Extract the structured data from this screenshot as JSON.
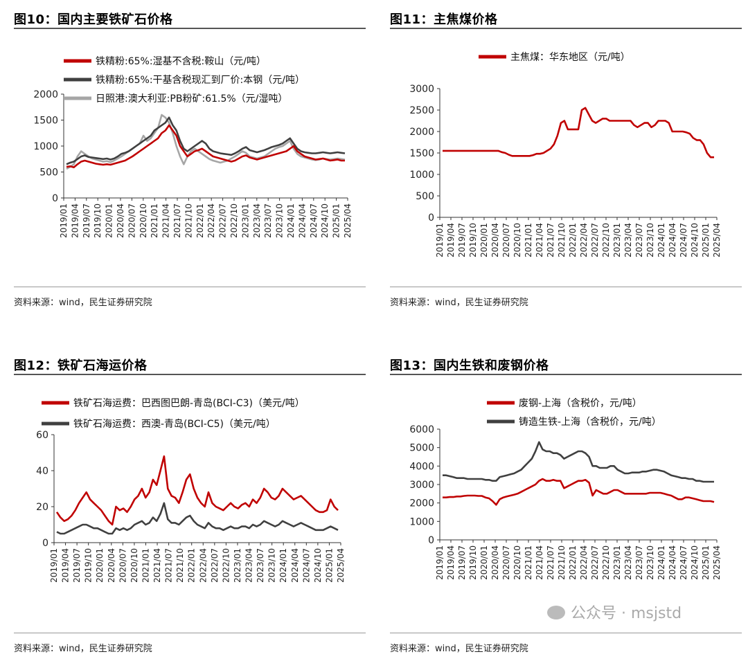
{
  "source_text": "资料来源：wind，民生证券研究院",
  "watermark": "公众号 · msjstd",
  "colors": {
    "red": "#c00000",
    "dark": "#404040",
    "gray": "#a6a6a6"
  },
  "xticks": [
    "2019/01",
    "2019/04",
    "2019/07",
    "2019/10",
    "2020/01",
    "2020/04",
    "2020/07",
    "2020/10",
    "2021/01",
    "2021/04",
    "2021/07",
    "2021/10",
    "2022/01",
    "2022/04",
    "2022/07",
    "2022/10",
    "2023/01",
    "2023/04",
    "2023/07",
    "2023/10",
    "2024/01",
    "2024/04",
    "2024/07",
    "2024/10",
    "2025/01",
    "2025/04"
  ],
  "chart_data": [
    {
      "title": "图10：国内主要铁矿石价格",
      "type": "line",
      "ylim": [
        0,
        2000
      ],
      "yticks": [
        0,
        500,
        1000,
        1500,
        2000
      ],
      "legend": "top-left",
      "series": [
        {
          "name": "铁精粉:65%:湿基不含税:鞍山（元/吨）",
          "color": "#c00000",
          "values": [
            600,
            610,
            590,
            650,
            700,
            720,
            700,
            680,
            660,
            650,
            640,
            650,
            640,
            660,
            680,
            700,
            720,
            760,
            800,
            850,
            900,
            950,
            1000,
            1050,
            1100,
            1150,
            1250,
            1300,
            1400,
            1300,
            1200,
            1000,
            900,
            800,
            850,
            900,
            920,
            950,
            900,
            850,
            800,
            780,
            760,
            740,
            720,
            700,
            720,
            760,
            800,
            820,
            780,
            760,
            740,
            760,
            780,
            800,
            820,
            840,
            860,
            880,
            900,
            950,
            1000,
            900,
            850,
            800,
            780,
            760,
            740,
            750,
            760,
            740,
            720,
            730,
            740,
            720,
            720
          ]
        },
        {
          "name": "铁精粉:65%:干基含税现汇到厂价:本钢（元/吨）",
          "color": "#404040",
          "values": [
            650,
            680,
            700,
            750,
            800,
            820,
            790,
            780,
            770,
            760,
            750,
            760,
            740,
            760,
            800,
            850,
            870,
            900,
            950,
            1000,
            1050,
            1100,
            1150,
            1200,
            1300,
            1350,
            1400,
            1450,
            1550,
            1400,
            1300,
            1100,
            950,
            900,
            950,
            1000,
            1050,
            1100,
            1050,
            950,
            900,
            880,
            860,
            850,
            840,
            830,
            860,
            900,
            950,
            980,
            920,
            900,
            880,
            900,
            920,
            950,
            980,
            1000,
            1020,
            1050,
            1100,
            1150,
            1050,
            950,
            900,
            880,
            870,
            860,
            860,
            870,
            880,
            870,
            860,
            870,
            880,
            870,
            860
          ]
        },
        {
          "name": "日照港:澳大利亚:PB粉矿:61.5%（元/湿吨）",
          "color": "#a6a6a6",
          "values": [
            560,
            600,
            650,
            800,
            900,
            850,
            800,
            760,
            740,
            720,
            700,
            710,
            690,
            720,
            760,
            800,
            850,
            900,
            950,
            1000,
            1050,
            1200,
            1100,
            1150,
            1250,
            1350,
            1600,
            1550,
            1450,
            1250,
            1000,
            800,
            650,
            800,
            900,
            950,
            900,
            850,
            800,
            750,
            720,
            700,
            680,
            700,
            720,
            760,
            800,
            850,
            900,
            870,
            800,
            780,
            760,
            780,
            800,
            850,
            900,
            950,
            980,
            1000,
            1050,
            1100,
            950,
            850,
            800,
            780,
            760,
            740,
            730,
            740,
            760,
            750,
            740,
            750,
            760,
            750,
            740
          ]
        }
      ]
    },
    {
      "title": "图11：主焦煤价格",
      "type": "line",
      "ylim": [
        0,
        3000
      ],
      "yticks": [
        0,
        500,
        1000,
        1500,
        2000,
        2500,
        3000
      ],
      "legend": "top-center",
      "series": [
        {
          "name": "主焦煤：华东地区（元/吨）",
          "color": "#c00000",
          "values": [
            1550,
            1550,
            1550,
            1550,
            1550,
            1550,
            1550,
            1550,
            1550,
            1550,
            1550,
            1550,
            1550,
            1550,
            1550,
            1550,
            1550,
            1520,
            1500,
            1460,
            1430,
            1430,
            1430,
            1430,
            1430,
            1430,
            1450,
            1480,
            1480,
            1500,
            1550,
            1600,
            1700,
            1900,
            2200,
            2250,
            2050,
            2050,
            2050,
            2050,
            2500,
            2550,
            2400,
            2250,
            2200,
            2250,
            2300,
            2300,
            2250,
            2250,
            2250,
            2250,
            2250,
            2250,
            2250,
            2150,
            2100,
            2150,
            2200,
            2200,
            2100,
            2150,
            2250,
            2250,
            2250,
            2200,
            2000,
            2000,
            2000,
            2000,
            1980,
            1950,
            1850,
            1800,
            1800,
            1700,
            1500,
            1400,
            1400
          ]
        }
      ]
    },
    {
      "title": "图12：铁矿石海运价格",
      "type": "line",
      "ylim": [
        0,
        60
      ],
      "yticks": [
        0,
        20,
        40,
        60
      ],
      "legend": "top-left",
      "series": [
        {
          "name": "铁矿石海运费：巴西图巴朗-青岛(BCI-C3)（美元/吨）",
          "color": "#c00000",
          "values": [
            17,
            14,
            12,
            13,
            15,
            18,
            22,
            25,
            28,
            24,
            22,
            20,
            18,
            15,
            12,
            10,
            20,
            18,
            19,
            17,
            20,
            24,
            26,
            30,
            25,
            28,
            35,
            32,
            40,
            48,
            30,
            26,
            25,
            22,
            28,
            35,
            38,
            30,
            25,
            22,
            20,
            28,
            22,
            20,
            19,
            18,
            20,
            22,
            20,
            19,
            21,
            22,
            20,
            24,
            22,
            25,
            30,
            28,
            25,
            24,
            26,
            30,
            28,
            26,
            24,
            25,
            26,
            24,
            22,
            20,
            18,
            17,
            17,
            18,
            24,
            20,
            18
          ]
        },
        {
          "name": "铁矿石海运费：西澳-青岛(BCI-C5)（美元/吨）",
          "color": "#404040",
          "values": [
            6,
            5,
            5,
            6,
            7,
            8,
            9,
            10,
            10,
            9,
            8,
            8,
            7,
            6,
            5,
            5,
            8,
            7,
            8,
            7,
            8,
            10,
            11,
            12,
            10,
            11,
            14,
            12,
            16,
            22,
            13,
            11,
            11,
            10,
            12,
            14,
            15,
            12,
            10,
            9,
            8,
            11,
            9,
            8,
            8,
            7,
            8,
            9,
            8,
            8,
            9,
            9,
            8,
            10,
            9,
            10,
            12,
            11,
            10,
            9,
            10,
            12,
            11,
            10,
            9,
            10,
            11,
            10,
            9,
            8,
            7,
            7,
            7,
            8,
            9,
            8,
            7
          ]
        }
      ]
    },
    {
      "title": "图13：国内生铁和废钢价格",
      "type": "line",
      "ylim": [
        0,
        6000
      ],
      "yticks": [
        0,
        1000,
        2000,
        3000,
        4000,
        5000,
        6000
      ],
      "legend": "top-center",
      "series": [
        {
          "name": "废钢-上海（含税价，元/吨）",
          "color": "#c00000",
          "values": [
            2300,
            2300,
            2320,
            2320,
            2350,
            2350,
            2380,
            2400,
            2400,
            2400,
            2380,
            2380,
            2300,
            2250,
            2100,
            1900,
            2200,
            2300,
            2350,
            2400,
            2450,
            2500,
            2600,
            2700,
            2800,
            2900,
            3000,
            3200,
            3300,
            3200,
            3200,
            3250,
            3200,
            3200,
            2800,
            2900,
            3000,
            3100,
            3200,
            3200,
            3250,
            3100,
            2400,
            2700,
            2600,
            2500,
            2500,
            2600,
            2700,
            2700,
            2600,
            2500,
            2500,
            2500,
            2500,
            2500,
            2500,
            2500,
            2550,
            2550,
            2550,
            2550,
            2500,
            2450,
            2400,
            2300,
            2200,
            2200,
            2300,
            2300,
            2250,
            2200,
            2150,
            2100,
            2100,
            2100,
            2050
          ]
        },
        {
          "name": "铸造生铁-上海（含税价，元/吨）",
          "color": "#404040",
          "values": [
            3500,
            3500,
            3450,
            3400,
            3350,
            3350,
            3350,
            3300,
            3300,
            3300,
            3300,
            3300,
            3250,
            3250,
            3200,
            3200,
            3400,
            3450,
            3500,
            3550,
            3600,
            3700,
            3800,
            4000,
            4200,
            4400,
            4800,
            5300,
            4900,
            4800,
            4800,
            4700,
            4700,
            4600,
            4400,
            4500,
            4600,
            4700,
            4800,
            4800,
            4700,
            4500,
            4000,
            4000,
            3900,
            3900,
            3900,
            4000,
            4000,
            3800,
            3700,
            3600,
            3600,
            3650,
            3650,
            3650,
            3700,
            3700,
            3750,
            3800,
            3800,
            3750,
            3700,
            3600,
            3500,
            3450,
            3400,
            3350,
            3350,
            3300,
            3300,
            3200,
            3200,
            3150,
            3150,
            3150,
            3150
          ]
        }
      ]
    }
  ]
}
